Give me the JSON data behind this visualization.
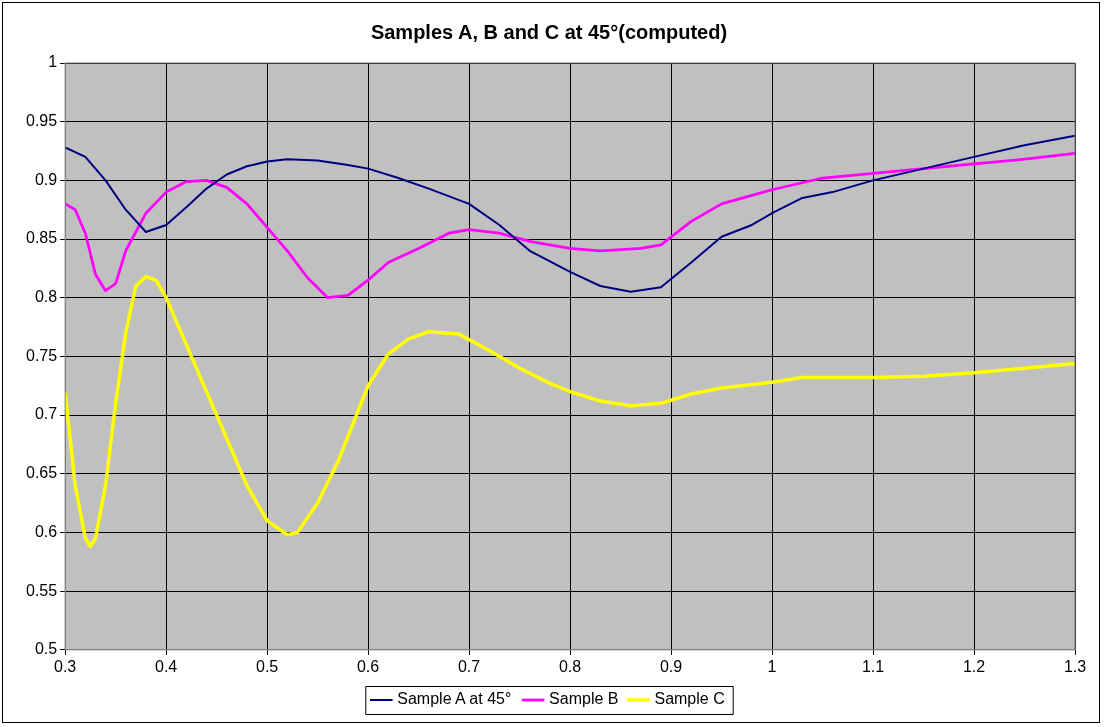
{
  "chart_data": {
    "type": "line",
    "title": "Samples A, B and C at 45°(computed)",
    "xlim": [
      0.3,
      1.3
    ],
    "xticks": [
      0.3,
      0.4,
      0.5,
      0.6,
      0.7,
      0.8,
      0.9,
      1,
      1.1,
      1.2,
      1.3
    ],
    "ylim": [
      0.5,
      1
    ],
    "yticks": [
      0.5,
      0.55,
      0.6,
      0.65,
      0.7,
      0.75,
      0.8,
      0.85,
      0.9,
      0.95,
      1
    ],
    "grid": true,
    "legend": "bottom",
    "marker": "none",
    "line_style": "solid",
    "series": [
      {
        "name": "Sample A at 45°",
        "color": "#000080",
        "x": [
          0.3,
          0.32,
          0.34,
          0.36,
          0.38,
          0.4,
          0.42,
          0.44,
          0.46,
          0.48,
          0.5,
          0.52,
          0.55,
          0.58,
          0.6,
          0.63,
          0.66,
          0.7,
          0.73,
          0.76,
          0.8,
          0.83,
          0.86,
          0.89,
          0.92,
          0.95,
          0.98,
          1,
          1.03,
          1.06,
          1.1,
          1.15,
          1.2,
          1.25,
          1.3
        ],
        "values": [
          0.928,
          0.92,
          0.9,
          0.875,
          0.856,
          0.862,
          0.877,
          0.893,
          0.905,
          0.912,
          0.916,
          0.918,
          0.917,
          0.913,
          0.91,
          0.902,
          0.893,
          0.88,
          0.862,
          0.84,
          0.822,
          0.81,
          0.805,
          0.809,
          0.83,
          0.852,
          0.862,
          0.872,
          0.885,
          0.89,
          0.9,
          0.91,
          0.92,
          0.93,
          0.938
        ]
      },
      {
        "name": "Sample B",
        "color": "#ff00ff",
        "x": [
          0.3,
          0.31,
          0.32,
          0.33,
          0.34,
          0.35,
          0.36,
          0.38,
          0.4,
          0.42,
          0.44,
          0.46,
          0.48,
          0.5,
          0.52,
          0.54,
          0.56,
          0.58,
          0.6,
          0.62,
          0.65,
          0.68,
          0.7,
          0.73,
          0.76,
          0.8,
          0.83,
          0.87,
          0.89,
          0.92,
          0.95,
          1,
          1.05,
          1.1,
          1.15,
          1.2,
          1.25,
          1.3
        ],
        "values": [
          0.88,
          0.875,
          0.855,
          0.82,
          0.806,
          0.812,
          0.84,
          0.872,
          0.89,
          0.899,
          0.9,
          0.894,
          0.88,
          0.86,
          0.84,
          0.817,
          0.8,
          0.802,
          0.815,
          0.83,
          0.842,
          0.855,
          0.858,
          0.855,
          0.848,
          0.842,
          0.84,
          0.842,
          0.845,
          0.865,
          0.88,
          0.892,
          0.902,
          0.906,
          0.91,
          0.914,
          0.918,
          0.923
        ]
      },
      {
        "name": "Sample C",
        "color": "#ffff00",
        "x": [
          0.3,
          0.305,
          0.31,
          0.32,
          0.325,
          0.33,
          0.34,
          0.35,
          0.36,
          0.37,
          0.38,
          0.39,
          0.4,
          0.42,
          0.44,
          0.46,
          0.48,
          0.5,
          0.52,
          0.53,
          0.55,
          0.57,
          0.6,
          0.62,
          0.64,
          0.66,
          0.69,
          0.72,
          0.75,
          0.78,
          0.8,
          0.83,
          0.86,
          0.89,
          0.92,
          0.95,
          1,
          1.03,
          1.1,
          1.15,
          1.2,
          1.25,
          1.3
        ],
        "values": [
          0.718,
          0.68,
          0.64,
          0.595,
          0.588,
          0.595,
          0.64,
          0.71,
          0.77,
          0.81,
          0.818,
          0.815,
          0.8,
          0.76,
          0.72,
          0.68,
          0.64,
          0.61,
          0.598,
          0.6,
          0.625,
          0.66,
          0.725,
          0.752,
          0.765,
          0.771,
          0.769,
          0.755,
          0.74,
          0.727,
          0.72,
          0.712,
          0.708,
          0.71,
          0.718,
          0.723,
          0.728,
          0.732,
          0.732,
          0.733,
          0.736,
          0.74,
          0.744
        ]
      }
    ]
  }
}
